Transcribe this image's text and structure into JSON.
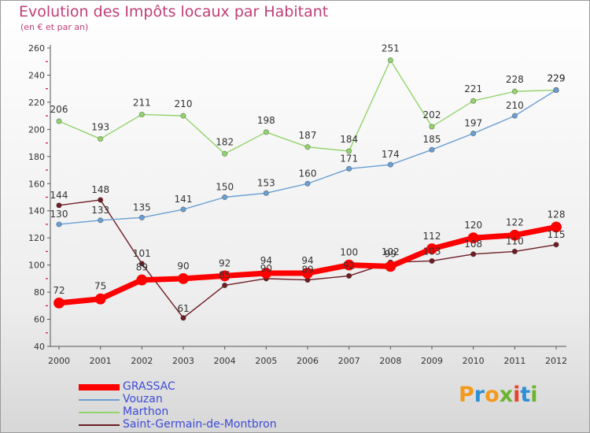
{
  "header": {
    "title": "Evolution des Impôts locaux par Habitant",
    "subtitle": "(en € et par an)"
  },
  "logo": {
    "text": "Proxiti",
    "colors": [
      "#f39a1e",
      "#2d8fd6",
      "#f39a1e",
      "#6bb430",
      "#e8432c",
      "#2d8fd6",
      "#6bb430"
    ]
  },
  "chart_data": {
    "type": "line",
    "title": "Evolution des Impôts locaux par Habitant",
    "subtitle": "(en € et par an)",
    "x": [
      "2000",
      "2001",
      "2002",
      "2003",
      "2004",
      "2005",
      "2006",
      "2007",
      "2008",
      "2009",
      "2010",
      "2011",
      "2012"
    ],
    "ylim": [
      40,
      260
    ],
    "yticks": [
      40,
      60,
      80,
      100,
      120,
      140,
      160,
      180,
      200,
      220,
      240,
      260
    ],
    "grid": false,
    "legend": "bottom-left",
    "series": [
      {
        "name": "Saint-Germain-de-Montbron",
        "color": "#6e1e24",
        "values": [
          144,
          148,
          101,
          61,
          85,
          90,
          89,
          92,
          102,
          103,
          108,
          110,
          115
        ]
      },
      {
        "name": "Marthon",
        "color": "#93d36c",
        "values": [
          206,
          193,
          211,
          210,
          182,
          198,
          187,
          184,
          251,
          202,
          221,
          228,
          229
        ]
      },
      {
        "name": "Vouzan",
        "color": "#6a9fd3",
        "values": [
          130,
          133,
          135,
          141,
          150,
          153,
          160,
          171,
          174,
          185,
          197,
          210,
          229
        ]
      },
      {
        "name": "GRASSAC",
        "color": "#ff0000",
        "values": [
          72,
          75,
          89,
          90,
          92,
          94,
          94,
          100,
          99,
          112,
          120,
          122,
          128
        ]
      }
    ],
    "legend_order": [
      "GRASSAC",
      "Vouzan",
      "Marthon",
      "Saint-Germain-de-Montbron"
    ]
  }
}
